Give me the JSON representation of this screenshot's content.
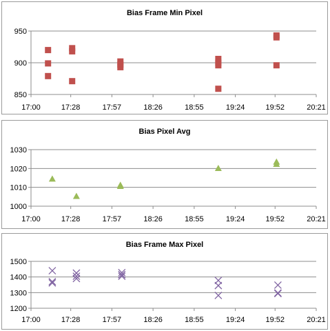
{
  "chart_data": [
    {
      "type": "scatter",
      "title": "Bias Frame Min Pixel",
      "xlabel": "",
      "ylabel": "",
      "x_ticks": [
        "17:00",
        "17:28",
        "17:57",
        "18:26",
        "18:55",
        "19:24",
        "19:52",
        "20:21"
      ],
      "y_ticks": [
        "850",
        "900",
        "950"
      ],
      "xlim": [
        "17:00",
        "20:21"
      ],
      "ylim": [
        850,
        950
      ],
      "marker": "square",
      "color": "#c0504d",
      "grid": true,
      "legend": "none",
      "points": [
        {
          "x": "17:12",
          "y": 920
        },
        {
          "x": "17:12",
          "y": 899
        },
        {
          "x": "17:12",
          "y": 879
        },
        {
          "x": "17:29",
          "y": 923
        },
        {
          "x": "17:29",
          "y": 918
        },
        {
          "x": "17:29",
          "y": 871
        },
        {
          "x": "18:03",
          "y": 902
        },
        {
          "x": "18:03",
          "y": 897
        },
        {
          "x": "18:03",
          "y": 893
        },
        {
          "x": "19:12",
          "y": 906
        },
        {
          "x": "19:12",
          "y": 900
        },
        {
          "x": "19:12",
          "y": 896
        },
        {
          "x": "19:12",
          "y": 859
        },
        {
          "x": "19:53",
          "y": 943
        },
        {
          "x": "19:53",
          "y": 940
        },
        {
          "x": "19:53",
          "y": 896
        }
      ]
    },
    {
      "type": "scatter",
      "title": "Bias Pixel Avg",
      "xlabel": "",
      "ylabel": "",
      "x_ticks": [
        "17:00",
        "17:28",
        "17:57",
        "18:26",
        "18:55",
        "19:24",
        "19:52",
        "20:21"
      ],
      "y_ticks": [
        "1000",
        "1010",
        "1020",
        "1030"
      ],
      "xlim": [
        "17:00",
        "20:21"
      ],
      "ylim": [
        1000,
        1030
      ],
      "marker": "triangle",
      "color": "#9bbb59",
      "grid": true,
      "legend": "none",
      "points": [
        {
          "x": "17:15",
          "y": 1014.5
        },
        {
          "x": "17:32",
          "y": 1005.3
        },
        {
          "x": "18:03",
          "y": 1011.2
        },
        {
          "x": "18:03",
          "y": 1010.6
        },
        {
          "x": "19:12",
          "y": 1020.1
        },
        {
          "x": "19:53",
          "y": 1023.5
        },
        {
          "x": "19:53",
          "y": 1022.3
        }
      ]
    },
    {
      "type": "scatter",
      "title": "Bias Frame Max Pixel",
      "xlabel": "",
      "ylabel": "",
      "x_ticks": [
        "17:00",
        "17:28",
        "17:57",
        "18:26",
        "18:55",
        "19:24",
        "19:52",
        "20:21"
      ],
      "y_ticks": [
        "1200",
        "1300",
        "1400",
        "1500"
      ],
      "xlim": [
        "17:00",
        "20:21"
      ],
      "ylim": [
        1200,
        1500
      ],
      "marker": "x",
      "color": "#8064a2",
      "grid": true,
      "legend": "none",
      "points": [
        {
          "x": "17:15",
          "y": 1440
        },
        {
          "x": "17:15",
          "y": 1370
        },
        {
          "x": "17:15",
          "y": 1362
        },
        {
          "x": "17:32",
          "y": 1425
        },
        {
          "x": "17:32",
          "y": 1405
        },
        {
          "x": "17:32",
          "y": 1390
        },
        {
          "x": "18:04",
          "y": 1428
        },
        {
          "x": "18:04",
          "y": 1415
        },
        {
          "x": "18:04",
          "y": 1405
        },
        {
          "x": "19:12",
          "y": 1378
        },
        {
          "x": "19:12",
          "y": 1345
        },
        {
          "x": "19:12",
          "y": 1282
        },
        {
          "x": "19:54",
          "y": 1348
        },
        {
          "x": "19:54",
          "y": 1298
        },
        {
          "x": "19:54",
          "y": 1294
        }
      ]
    }
  ]
}
